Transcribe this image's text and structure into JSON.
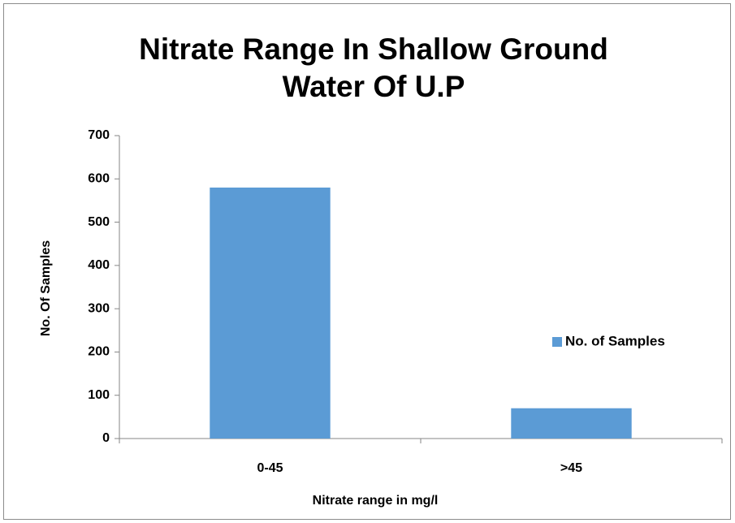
{
  "chart_data": {
    "type": "bar",
    "title": "Nitrate Range In Shallow Ground Water Of U.P",
    "categories": [
      "0-45",
      ">45"
    ],
    "series": [
      {
        "name": "No. of Samples",
        "color": "#5b9bd5",
        "values": [
          580,
          70
        ]
      }
    ],
    "xlabel": "Nitrate range in mg/l",
    "ylabel": "No. Of Samples",
    "ylim": [
      0,
      700
    ],
    "yticks": [
      0,
      100,
      200,
      300,
      400,
      500,
      600,
      700
    ],
    "grid": false,
    "legend": "right"
  }
}
